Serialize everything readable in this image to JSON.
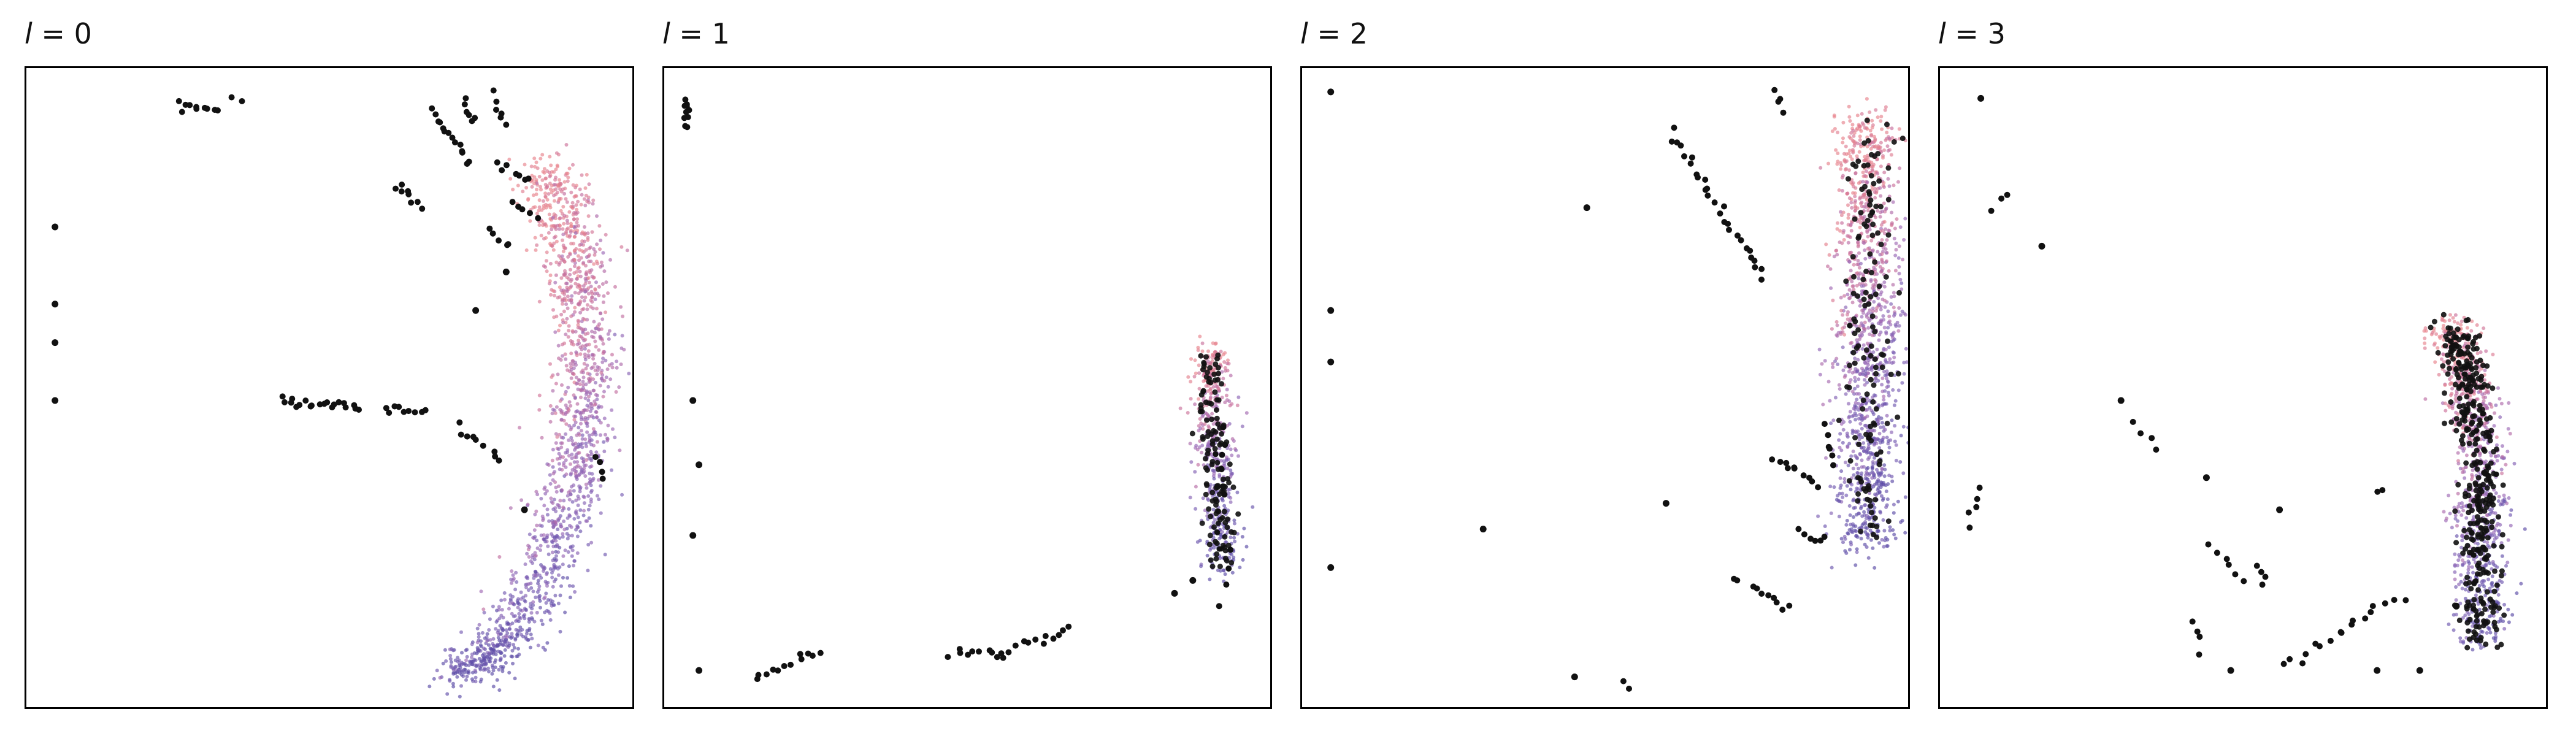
{
  "colors": {
    "outlier": "#111111",
    "gradient": [
      "#e8838c",
      "#c76f9d",
      "#9c68b5",
      "#7a5fb4",
      "#5b4ba6"
    ]
  },
  "chart_data": [
    {
      "type": "scatter",
      "title_var": "l",
      "title_val": "= 0",
      "xlim": [
        0,
        1
      ],
      "ylim": [
        0,
        1
      ],
      "grid": false,
      "ticks": false,
      "outlier_segments": [
        [
          0.25,
          0.94,
          0.32,
          0.93,
          10
        ],
        [
          0.34,
          0.95,
          0.35,
          0.95,
          2
        ],
        [
          0.67,
          0.93,
          0.73,
          0.85,
          14
        ],
        [
          0.72,
          0.95,
          0.74,
          0.91,
          6
        ],
        [
          0.77,
          0.95,
          0.79,
          0.91,
          6
        ],
        [
          0.78,
          0.85,
          0.83,
          0.82,
          7
        ],
        [
          0.61,
          0.82,
          0.65,
          0.78,
          8
        ],
        [
          0.76,
          0.75,
          0.79,
          0.72,
          5
        ],
        [
          0.8,
          0.79,
          0.84,
          0.76,
          5
        ],
        [
          0.42,
          0.48,
          0.55,
          0.47,
          20
        ],
        [
          0.59,
          0.47,
          0.66,
          0.46,
          9
        ],
        [
          0.71,
          0.44,
          0.78,
          0.39,
          9
        ],
        [
          0.94,
          0.39,
          0.95,
          0.36,
          4
        ]
      ],
      "outlier_points": [
        [
          0.05,
          0.75
        ],
        [
          0.05,
          0.63
        ],
        [
          0.05,
          0.57
        ],
        [
          0.05,
          0.48
        ],
        [
          0.82,
          0.31
        ],
        [
          0.79,
          0.68
        ],
        [
          0.74,
          0.62
        ]
      ],
      "clusters": [
        {
          "curve": [
            [
              0.85,
              0.85
            ],
            [
              0.9,
              0.72
            ],
            [
              0.92,
              0.55
            ],
            [
              0.91,
              0.4
            ],
            [
              0.87,
              0.25
            ],
            [
              0.8,
              0.12
            ],
            [
              0.72,
              0.05
            ]
          ],
          "width": 0.06,
          "count": 1600
        }
      ],
      "cluster_outliers": 0
    },
    {
      "type": "scatter",
      "title_var": "l",
      "title_val": "= 1",
      "xlim": [
        0,
        1
      ],
      "ylim": [
        0,
        1
      ],
      "grid": false,
      "ticks": false,
      "outlier_segments": [
        [
          0.04,
          0.95,
          0.04,
          0.91,
          10
        ],
        [
          0.15,
          0.05,
          0.26,
          0.09,
          12
        ],
        [
          0.47,
          0.09,
          0.56,
          0.08,
          10
        ],
        [
          0.56,
          0.09,
          0.67,
          0.12,
          12
        ],
        [
          0.92,
          0.44,
          0.92,
          0.33,
          6
        ],
        [
          0.93,
          0.25,
          0.92,
          0.16,
          4
        ]
      ],
      "outlier_points": [
        [
          0.05,
          0.48
        ],
        [
          0.06,
          0.38
        ],
        [
          0.05,
          0.27
        ],
        [
          0.06,
          0.06
        ],
        [
          0.84,
          0.18
        ],
        [
          0.87,
          0.2
        ]
      ],
      "clusters": [
        {
          "curve": [
            [
              0.9,
              0.56
            ],
            [
              0.9,
              0.47
            ],
            [
              0.91,
              0.36
            ],
            [
              0.92,
              0.22
            ]
          ],
          "width": 0.035,
          "count": 480
        }
      ],
      "cluster_outliers": 130
    },
    {
      "type": "scatter",
      "title_var": "l",
      "title_val": "= 2",
      "xlim": [
        0,
        1
      ],
      "ylim": [
        0,
        1
      ],
      "grid": false,
      "ticks": false,
      "outlier_segments": [
        [
          0.61,
          0.9,
          0.76,
          0.67,
          28
        ],
        [
          0.78,
          0.96,
          0.79,
          0.93,
          4
        ],
        [
          0.78,
          0.39,
          0.85,
          0.35,
          10
        ],
        [
          0.86,
          0.44,
          0.88,
          0.38,
          6
        ],
        [
          0.82,
          0.28,
          0.86,
          0.26,
          6
        ],
        [
          0.74,
          0.19,
          0.8,
          0.16,
          8
        ],
        [
          0.71,
          0.21,
          0.72,
          0.2,
          2
        ],
        [
          0.53,
          0.04,
          0.54,
          0.03,
          2
        ]
      ],
      "outlier_points": [
        [
          0.05,
          0.96
        ],
        [
          0.47,
          0.78
        ],
        [
          0.05,
          0.62
        ],
        [
          0.05,
          0.54
        ],
        [
          0.3,
          0.28
        ],
        [
          0.05,
          0.22
        ],
        [
          0.45,
          0.05
        ],
        [
          0.6,
          0.32
        ]
      ],
      "clusters": [
        {
          "curve": [
            [
              0.93,
              0.92
            ],
            [
              0.93,
              0.75
            ],
            [
              0.93,
              0.58
            ],
            [
              0.93,
              0.42
            ],
            [
              0.93,
              0.25
            ]
          ],
          "width": 0.06,
          "count": 1300
        }
      ],
      "cluster_outliers": 140
    },
    {
      "type": "scatter",
      "title_var": "l",
      "title_val": "= 3",
      "xlim": [
        0,
        1
      ],
      "ylim": [
        0,
        1
      ],
      "grid": false,
      "ticks": false,
      "outlier_segments": [
        [
          0.07,
          0.35,
          0.05,
          0.28,
          5
        ],
        [
          0.09,
          0.78,
          0.11,
          0.8,
          3
        ],
        [
          0.32,
          0.44,
          0.36,
          0.41,
          4
        ],
        [
          0.45,
          0.26,
          0.5,
          0.2,
          6
        ],
        [
          0.52,
          0.22,
          0.54,
          0.19,
          4
        ],
        [
          0.42,
          0.14,
          0.43,
          0.09,
          4
        ],
        [
          0.57,
          0.07,
          0.7,
          0.14,
          12
        ],
        [
          0.71,
          0.15,
          0.76,
          0.17,
          5
        ],
        [
          0.72,
          0.34,
          0.73,
          0.34,
          2
        ]
      ],
      "outlier_points": [
        [
          0.07,
          0.95
        ],
        [
          0.17,
          0.72
        ],
        [
          0.3,
          0.48
        ],
        [
          0.44,
          0.36
        ],
        [
          0.56,
          0.31
        ],
        [
          0.48,
          0.06
        ],
        [
          0.72,
          0.06
        ],
        [
          0.85,
          0.16
        ],
        [
          0.79,
          0.06
        ]
      ],
      "clusters": [
        {
          "curve": [
            [
              0.84,
              0.6
            ],
            [
              0.87,
              0.5
            ],
            [
              0.89,
              0.38
            ],
            [
              0.89,
              0.25
            ],
            [
              0.89,
              0.1
            ]
          ],
          "width": 0.05,
          "count": 900
        }
      ],
      "cluster_outliers": 380
    }
  ]
}
